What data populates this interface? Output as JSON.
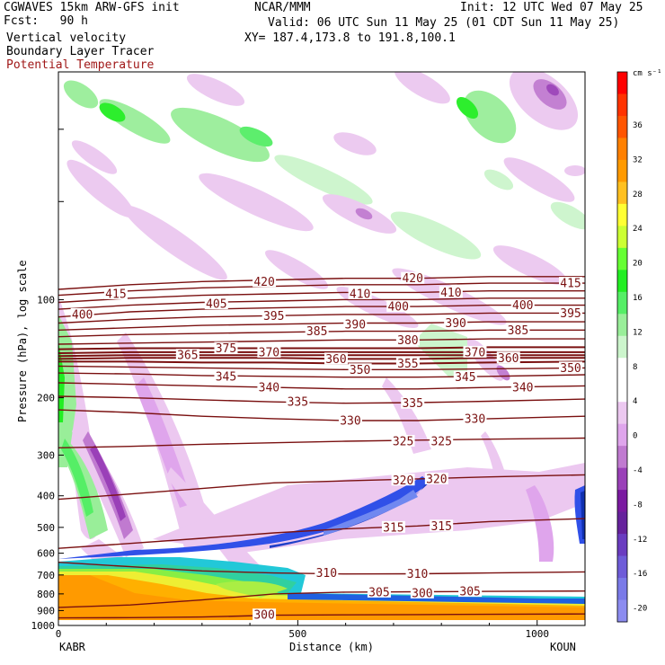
{
  "header": {
    "left": [
      "CGWAVES 15km ARW-GFS init",
      "Fcst:   90 h",
      "Vertical velocity",
      "Boundary Layer Tracer",
      "Potential Temperature"
    ],
    "center": [
      "NCAR/MMM"
    ],
    "right": [
      "Init: 12 UTC Wed 07 May 25",
      "Valid: 06 UTC Sun 11 May 25 (01 CDT Sun 11 May 25)",
      "XY= 187.4,173.8 to 191.8,100.1"
    ]
  },
  "chart_data": {
    "type": "contour",
    "xlabel": "Distance (km)",
    "ylabel": "Pressure (hPa), log scale",
    "x_endpoint_labels": {
      "left": "KABR",
      "right": "KOUN"
    },
    "x_ticks": [
      0,
      500,
      1000
    ],
    "x_range": [
      0,
      1100
    ],
    "y_scale": "log",
    "y_ticks": [
      100,
      200,
      300,
      400,
      500,
      600,
      700,
      800,
      900,
      1000
    ],
    "y_range": [
      1000,
      20
    ],
    "colorbar": {
      "units": "cm s⁻¹",
      "labels": [
        36,
        32,
        28,
        24,
        20,
        16,
        12,
        8,
        4,
        0,
        -4,
        -8,
        -12,
        -16,
        -20
      ],
      "colors": [
        "#ff0000",
        "#ff3300",
        "#ff5500",
        "#ff8000",
        "#ff9a00",
        "#ffc020",
        "#ffff33",
        "#ccff33",
        "#66ff33",
        "#22ee22",
        "#55ee66",
        "#99ee99",
        "#ccf5cc",
        "#ffffff",
        "#ffffff",
        "#ecc8f0",
        "#dfa5ec",
        "#c07ad0",
        "#9a40b8",
        "#7a1aa0",
        "#66229c",
        "#6a3cc0",
        "#6e5cd8",
        "#7a7ae8",
        "#8c8cf0"
      ]
    },
    "theta_contours": [
      {
        "level": 300,
        "x": [
          0,
          150,
          300,
          450,
          600,
          750,
          900,
          1100
        ],
        "p": [
          948,
          946,
          942,
          930,
          928,
          926,
          924,
          922
        ]
      },
      {
        "level": 305,
        "x": [
          0,
          150,
          300,
          450,
          600,
          750,
          900,
          1100
        ],
        "p": [
          880,
          865,
          835,
          800,
          790,
          788,
          786,
          784
        ]
      },
      {
        "level": 310,
        "x": [
          0,
          150,
          300,
          450,
          600,
          750,
          900,
          1100
        ],
        "p": [
          640,
          660,
          680,
          690,
          695,
          694,
          690,
          685
        ]
      },
      {
        "level": 315,
        "x": [
          0,
          150,
          300,
          450,
          600,
          750,
          900,
          1100
        ],
        "p": [
          580,
          560,
          540,
          520,
          505,
          495,
          480,
          470
        ]
      },
      {
        "level": 320,
        "x": [
          0,
          150,
          300,
          450,
          600,
          750,
          900,
          1100
        ],
        "p": [
          410,
          395,
          380,
          365,
          360,
          355,
          350,
          345
        ]
      },
      {
        "level": 325,
        "x": [
          0,
          150,
          300,
          450,
          600,
          750,
          900,
          1100
        ],
        "p": [
          285,
          282,
          278,
          275,
          272,
          270,
          268,
          266
        ]
      },
      {
        "level": 330,
        "x": [
          0,
          150,
          300,
          450,
          600,
          750,
          900,
          1100
        ],
        "p": [
          218,
          222,
          228,
          232,
          235,
          235,
          232,
          228
        ]
      },
      {
        "level": 335,
        "x": [
          0,
          150,
          300,
          450,
          600,
          750,
          900,
          1100
        ],
        "p": [
          198,
          200,
          203,
          206,
          208,
          207,
          205,
          202
        ]
      },
      {
        "level": 340,
        "x": [
          0,
          150,
          300,
          450,
          600,
          750,
          900,
          1100
        ],
        "p": [
          180,
          182,
          184,
          186,
          188,
          188,
          186,
          184
        ]
      },
      {
        "level": 345,
        "x": [
          0,
          150,
          300,
          450,
          600,
          750,
          900,
          1100
        ],
        "p": [
          168,
          169,
          171,
          172,
          173,
          173,
          172,
          170
        ]
      },
      {
        "level": 350,
        "x": [
          0,
          150,
          300,
          450,
          600,
          750,
          900,
          1100
        ],
        "p": [
          160,
          161,
          162,
          163,
          164,
          164,
          163,
          162
        ]
      },
      {
        "level": 355,
        "x": [
          0,
          150,
          300,
          450,
          600,
          750,
          900,
          1100
        ],
        "p": [
          155,
          155,
          156,
          156,
          157,
          157,
          156,
          155
        ]
      },
      {
        "level": 360,
        "x": [
          0,
          150,
          300,
          450,
          600,
          750,
          900,
          1100
        ],
        "p": [
          152,
          151,
          151,
          151,
          152,
          152,
          151,
          151
        ]
      },
      {
        "level": 365,
        "x": [
          0,
          150,
          300,
          450,
          600,
          750,
          900,
          1100
        ],
        "p": [
          149,
          148,
          148,
          148,
          148,
          148,
          148,
          148
        ]
      },
      {
        "level": 370,
        "x": [
          0,
          150,
          300,
          450,
          600,
          750,
          900,
          1100
        ],
        "p": [
          146,
          145,
          145,
          145,
          145,
          145,
          145,
          145
        ]
      },
      {
        "level": 375,
        "x": [
          0,
          150,
          300,
          450,
          600,
          750,
          900,
          1100
        ],
        "p": [
          142,
          141,
          141,
          141,
          141,
          141,
          140,
          140
        ]
      },
      {
        "level": 380,
        "x": [
          0,
          150,
          300,
          450,
          600,
          750,
          900,
          1100
        ],
        "p": [
          137,
          136,
          135,
          134,
          133,
          133,
          132,
          132
        ]
      },
      {
        "level": 385,
        "x": [
          0,
          150,
          300,
          450,
          600,
          750,
          900,
          1100
        ],
        "p": [
          130,
          128,
          127,
          126,
          125,
          125,
          124,
          124
        ]
      },
      {
        "level": 390,
        "x": [
          0,
          150,
          300,
          450,
          600,
          750,
          900,
          1100
        ],
        "p": [
          124,
          122,
          120,
          119,
          118,
          118,
          117,
          117
        ]
      },
      {
        "level": 395,
        "x": [
          0,
          150,
          300,
          450,
          600,
          750,
          900,
          1100
        ],
        "p": [
          118,
          115,
          113,
          112,
          111,
          111,
          110,
          110
        ]
      },
      {
        "level": 400,
        "x": [
          0,
          150,
          300,
          450,
          600,
          750,
          900,
          1100
        ],
        "p": [
          113,
          109,
          107,
          106,
          105,
          105,
          104,
          104
        ]
      },
      {
        "level": 405,
        "x": [
          0,
          150,
          300,
          450,
          600,
          750,
          900,
          1100
        ],
        "p": [
          107,
          104,
          102,
          101,
          100,
          100,
          99,
          99
        ]
      },
      {
        "level": 410,
        "x": [
          0,
          150,
          300,
          450,
          600,
          750,
          900,
          1100
        ],
        "p": [
          102,
          99,
          97,
          96,
          95,
          95,
          94,
          94
        ]
      },
      {
        "level": 415,
        "x": [
          0,
          150,
          300,
          450,
          600,
          750,
          900,
          1100
        ],
        "p": [
          97,
          94,
          92,
          91,
          90,
          90,
          89,
          89
        ]
      },
      {
        "level": 420,
        "x": [
          0,
          150,
          300,
          450,
          600,
          750,
          900,
          1100
        ],
        "p": [
          93,
          90,
          88,
          87,
          86,
          86,
          85,
          85
        ]
      }
    ],
    "theta_labels": [
      {
        "text": "415",
        "x": 120,
        "p": 96
      },
      {
        "text": "420",
        "x": 430,
        "p": 88
      },
      {
        "text": "420",
        "x": 740,
        "p": 86
      },
      {
        "text": "415",
        "x": 1070,
        "p": 89
      },
      {
        "text": "405",
        "x": 330,
        "p": 103
      },
      {
        "text": "410",
        "x": 630,
        "p": 96
      },
      {
        "text": "410",
        "x": 820,
        "p": 95
      },
      {
        "text": "400",
        "x": 50,
        "p": 111
      },
      {
        "text": "400",
        "x": 710,
        "p": 105
      },
      {
        "text": "400",
        "x": 970,
        "p": 104
      },
      {
        "text": "395",
        "x": 450,
        "p": 112
      },
      {
        "text": "395",
        "x": 1070,
        "p": 110
      },
      {
        "text": "385",
        "x": 540,
        "p": 125
      },
      {
        "text": "390",
        "x": 620,
        "p": 119
      },
      {
        "text": "390",
        "x": 830,
        "p": 118
      },
      {
        "text": "385",
        "x": 960,
        "p": 124
      },
      {
        "text": "375",
        "x": 350,
        "p": 141
      },
      {
        "text": "380",
        "x": 730,
        "p": 133
      },
      {
        "text": "365",
        "x": 270,
        "p": 148
      },
      {
        "text": "370",
        "x": 440,
        "p": 145
      },
      {
        "text": "370",
        "x": 870,
        "p": 145
      },
      {
        "text": "360",
        "x": 580,
        "p": 152
      },
      {
        "text": "360",
        "x": 940,
        "p": 151
      },
      {
        "text": "350",
        "x": 630,
        "p": 164
      },
      {
        "text": "355",
        "x": 730,
        "p": 157
      },
      {
        "text": "350",
        "x": 1070,
        "p": 162
      },
      {
        "text": "345",
        "x": 350,
        "p": 172
      },
      {
        "text": "340",
        "x": 440,
        "p": 186
      },
      {
        "text": "345",
        "x": 850,
        "p": 173
      },
      {
        "text": "335",
        "x": 500,
        "p": 206
      },
      {
        "text": "335",
        "x": 740,
        "p": 208
      },
      {
        "text": "340",
        "x": 970,
        "p": 186
      },
      {
        "text": "330",
        "x": 610,
        "p": 235
      },
      {
        "text": "330",
        "x": 870,
        "p": 232
      },
      {
        "text": "325",
        "x": 720,
        "p": 272
      },
      {
        "text": "325",
        "x": 800,
        "p": 272
      },
      {
        "text": "320",
        "x": 720,
        "p": 358
      },
      {
        "text": "320",
        "x": 790,
        "p": 355
      },
      {
        "text": "315",
        "x": 700,
        "p": 500
      },
      {
        "text": "315",
        "x": 800,
        "p": 495
      },
      {
        "text": "310",
        "x": 560,
        "p": 690
      },
      {
        "text": "310",
        "x": 750,
        "p": 694
      },
      {
        "text": "305",
        "x": 670,
        "p": 790
      },
      {
        "text": "305",
        "x": 860,
        "p": 786
      },
      {
        "text": "300",
        "x": 760,
        "p": 795
      },
      {
        "text": "300",
        "x": 430,
        "p": 928
      }
    ]
  }
}
